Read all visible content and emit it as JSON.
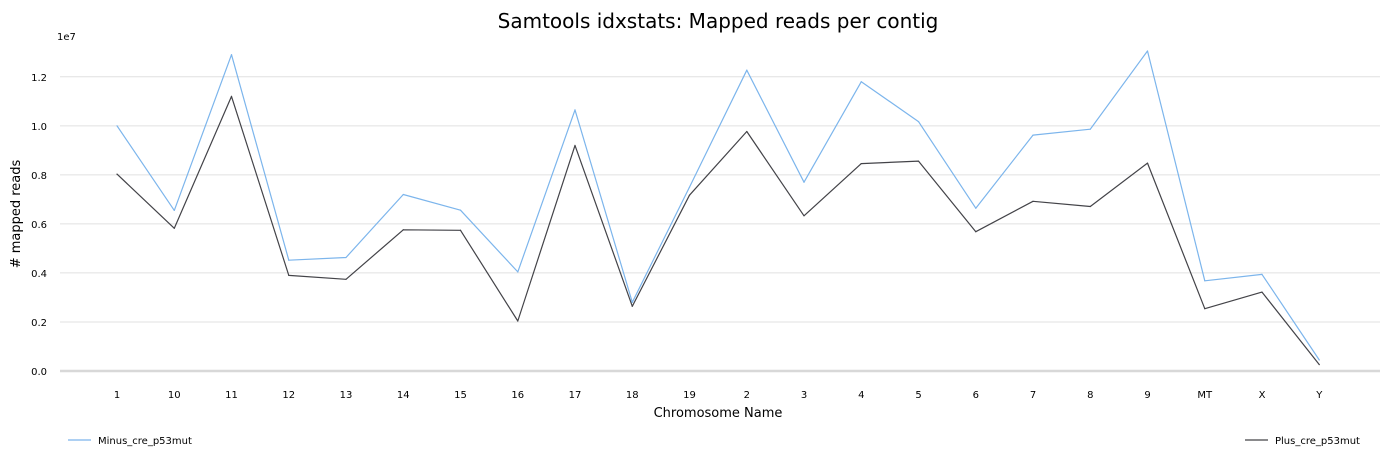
{
  "chart_data": {
    "type": "line",
    "title": "Samtools idxstats: Mapped reads per contig",
    "xlabel": "Chromosome Name",
    "ylabel": "# mapped reads",
    "y_scale_label": "1e7",
    "categories": [
      "1",
      "10",
      "11",
      "12",
      "13",
      "14",
      "15",
      "16",
      "17",
      "18",
      "19",
      "2",
      "3",
      "4",
      "5",
      "6",
      "7",
      "8",
      "9",
      "MT",
      "X",
      "Y"
    ],
    "ylim": [
      0,
      13500000.0
    ],
    "yticks": [
      0,
      2000000,
      4000000,
      6000000,
      8000000,
      10000000,
      12000000
    ],
    "ytick_labels": [
      "0.0",
      "0.2",
      "0.4",
      "0.6",
      "0.8",
      "1.0",
      "1.2"
    ],
    "grid": true,
    "series": [
      {
        "name": "Minus_cre_p53mut",
        "color": "#7cb5ec",
        "legend_position": "bottom-left",
        "values": [
          10000000,
          6550000,
          12900000,
          4520000,
          4630000,
          7200000,
          6560000,
          4040000,
          10650000,
          2800000,
          7500000,
          12270000,
          7700000,
          11800000,
          10170000,
          6640000,
          9620000,
          9860000,
          13050000,
          3680000,
          3940000,
          450000
        ]
      },
      {
        "name": "Plus_cre_p53mut",
        "color": "#434348",
        "legend_position": "bottom-right",
        "values": [
          8030000,
          5820000,
          11200000,
          3900000,
          3740000,
          5760000,
          5740000,
          2040000,
          9200000,
          2640000,
          7170000,
          9770000,
          6330000,
          8460000,
          8560000,
          5680000,
          6920000,
          6710000,
          8480000,
          2540000,
          3220000,
          260000
        ]
      }
    ]
  }
}
